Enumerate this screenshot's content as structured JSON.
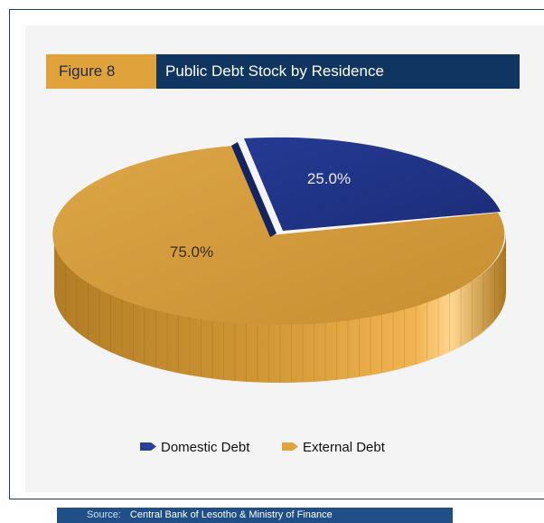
{
  "figure": {
    "tag": "Figure 8",
    "title": "Public Debt Stock by Residence"
  },
  "source": {
    "label": "Source:",
    "text": "Central Bank of Lesotho & Ministry of Finance"
  },
  "colors": {
    "domestic": "#1e2f82",
    "external": "#d39a3b",
    "header_bg": "#0f3560",
    "tag_bg": "#e0a23a"
  },
  "chart_data": {
    "type": "pie",
    "categories": [
      "Domestic Debt",
      "External Debt"
    ],
    "values": [
      25.0,
      75.0
    ],
    "data_labels": [
      "25.0%",
      "75.0%"
    ],
    "legend_placement": "bottom"
  }
}
